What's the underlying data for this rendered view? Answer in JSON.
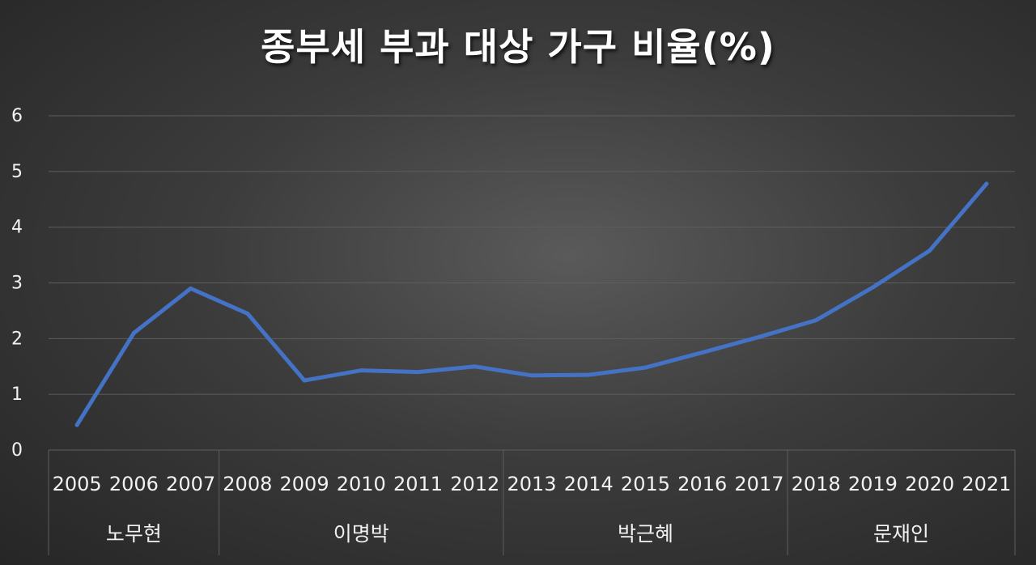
{
  "chart_data": {
    "type": "line",
    "title": "종부세 부과 대상 가구 비율(%)",
    "categories": [
      "2005",
      "2006",
      "2007",
      "2008",
      "2009",
      "2010",
      "2011",
      "2012",
      "2013",
      "2014",
      "2015",
      "2016",
      "2017",
      "2018",
      "2019",
      "2020",
      "2021"
    ],
    "series": [
      {
        "values": [
          0.45,
          2.1,
          2.9,
          2.45,
          1.25,
          1.43,
          1.4,
          1.5,
          1.34,
          1.35,
          1.48,
          1.75,
          2.03,
          2.33,
          2.92,
          3.58,
          4.78
        ]
      }
    ],
    "groups": [
      {
        "label": "노무현",
        "start": 0,
        "end": 2
      },
      {
        "label": "이명박",
        "start": 3,
        "end": 7
      },
      {
        "label": "박근혜",
        "start": 8,
        "end": 12
      },
      {
        "label": "문재인",
        "start": 13,
        "end": 16
      }
    ],
    "yticks": [
      "0",
      "1",
      "2",
      "3",
      "4",
      "5",
      "6"
    ],
    "ylim": [
      0,
      6
    ],
    "grid": true,
    "xlabel": "",
    "ylabel": "",
    "colors": {
      "line": "#4472c4",
      "grid": "#5e5e5e",
      "text": "#f2f2f2"
    }
  }
}
